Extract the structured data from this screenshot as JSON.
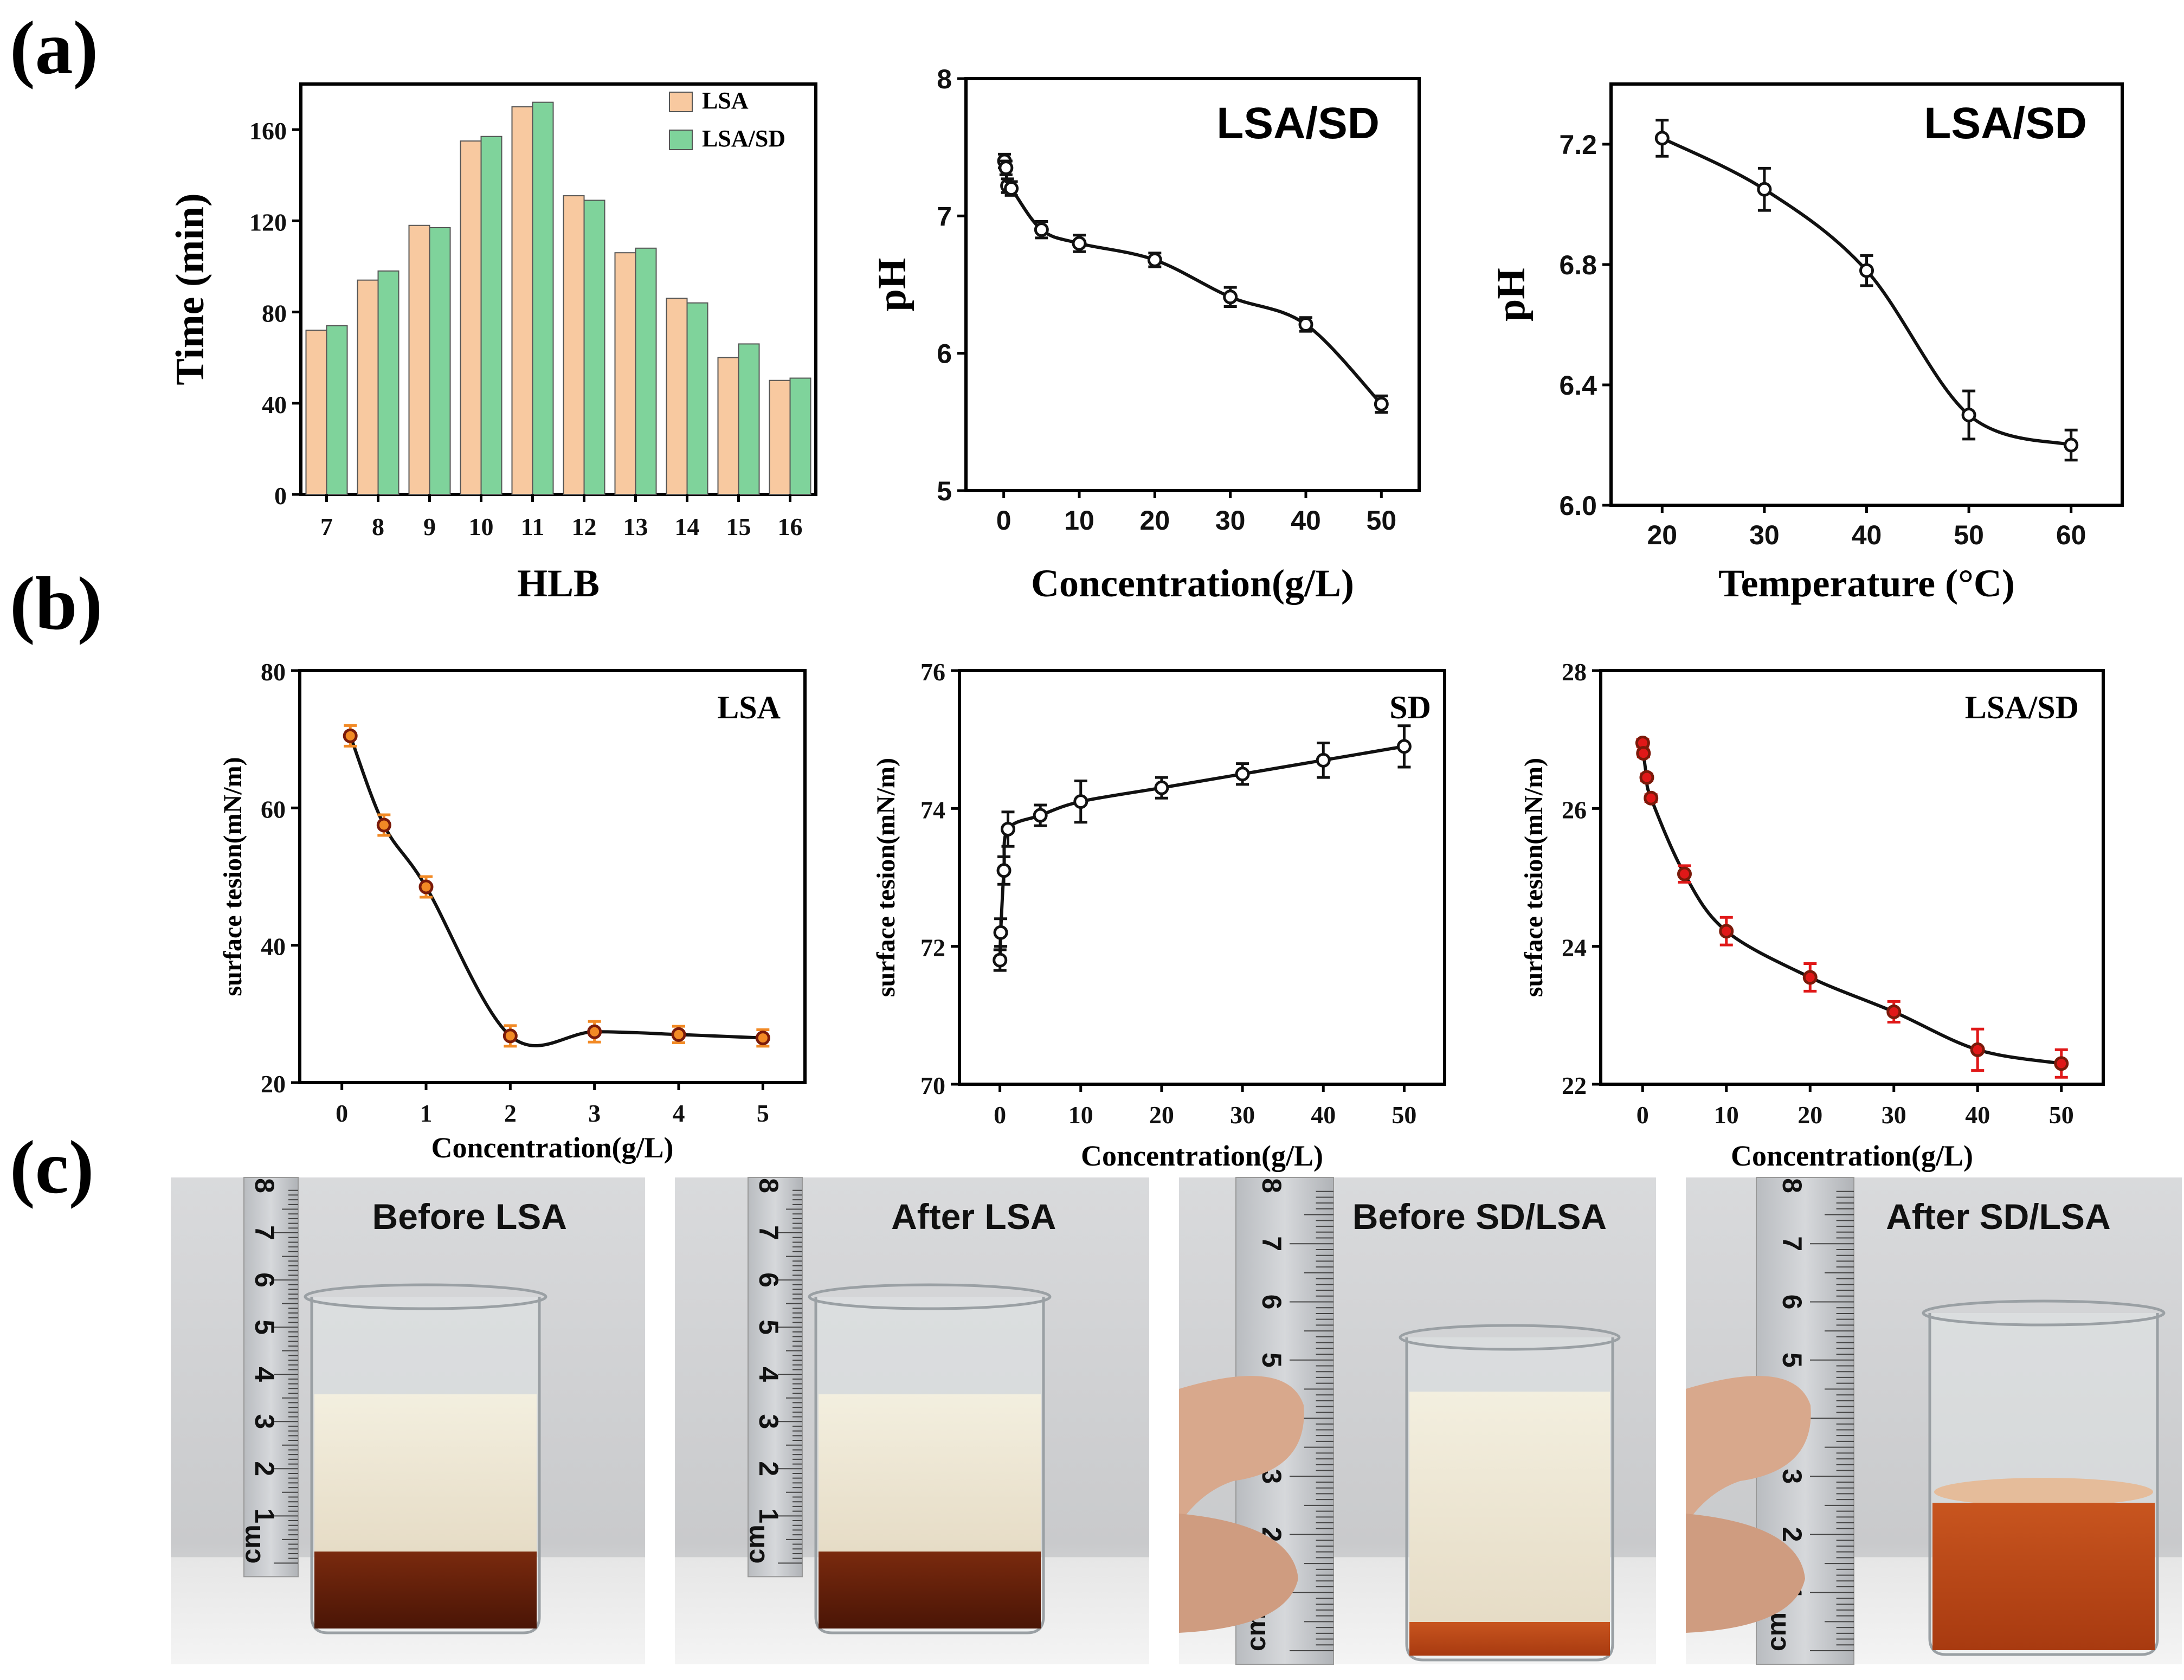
{
  "panel_labels": {
    "a": "(a)",
    "b": "(b)",
    "c": "(c)"
  },
  "colors": {
    "lsa_bar": "#f8c9a0",
    "lsasd_bar": "#7fd39b",
    "line_black": "#111111",
    "lsa_orange": "#f28a25",
    "lsasd_red": "#e01818"
  },
  "chart_data": [
    {
      "id": "a1",
      "type": "bar",
      "title": "",
      "xlabel": "HLB",
      "ylabel": "Time (min)",
      "categories": [
        "7",
        "8",
        "9",
        "10",
        "11",
        "12",
        "13",
        "14",
        "15",
        "16"
      ],
      "series": [
        {
          "name": "LSA",
          "values": [
            72,
            94,
            118,
            155,
            170,
            131,
            106,
            86,
            60,
            50
          ]
        },
        {
          "name": "LSA/SD",
          "values": [
            74,
            98,
            117,
            157,
            172,
            129,
            108,
            84,
            66,
            51
          ]
        }
      ],
      "ylim": [
        0,
        180
      ],
      "yticks": [
        "0",
        "40",
        "80",
        "120",
        "160"
      ],
      "legend": "top-right"
    },
    {
      "id": "a2",
      "type": "line",
      "title": "LSA/SD",
      "xlabel": "Concentration(g/L)",
      "ylabel": "pH",
      "x": [
        0.1,
        0.3,
        0.5,
        1,
        5,
        10,
        20,
        30,
        40,
        50
      ],
      "y": [
        7.4,
        7.35,
        7.22,
        7.2,
        6.9,
        6.8,
        6.68,
        6.41,
        6.21,
        5.63
      ],
      "err": [
        0.05,
        0.05,
        0.05,
        0.05,
        0.06,
        0.06,
        0.05,
        0.07,
        0.05,
        0.06
      ],
      "xlim": [
        -5,
        55
      ],
      "ylim": [
        5,
        8
      ],
      "xticks": [
        "0",
        "10",
        "20",
        "30",
        "40",
        "50"
      ],
      "yticks": [
        "5",
        "6",
        "7",
        "8"
      ]
    },
    {
      "id": "a3",
      "type": "line",
      "title": "LSA/SD",
      "xlabel": "Temperature (°C)",
      "ylabel": "pH",
      "x": [
        20,
        30,
        40,
        50,
        60
      ],
      "y": [
        7.22,
        7.05,
        6.78,
        6.3,
        6.2
      ],
      "err": [
        0.06,
        0.07,
        0.05,
        0.08,
        0.05
      ],
      "xlim": [
        15,
        65
      ],
      "ylim": [
        6.0,
        7.4
      ],
      "xticks": [
        "20",
        "30",
        "40",
        "50",
        "60"
      ],
      "yticks": [
        "6.0",
        "6.4",
        "6.8",
        "7.2"
      ]
    },
    {
      "id": "b1",
      "type": "line",
      "title": "LSA",
      "xlabel": "Concentration(g/L)",
      "ylabel": "surface tesion(mN/m)",
      "x": [
        0.1,
        0.5,
        1,
        2,
        3,
        4,
        5
      ],
      "y": [
        70.5,
        57.5,
        48.5,
        26.8,
        27.4,
        27.0,
        26.5
      ],
      "err": [
        1.5,
        1.5,
        1.5,
        1.5,
        1.5,
        1.2,
        1.2
      ],
      "xlim": [
        -0.5,
        5.5
      ],
      "ylim": [
        20,
        80
      ],
      "xticks": [
        "0",
        "1",
        "2",
        "3",
        "4",
        "5"
      ],
      "yticks": [
        "20",
        "40",
        "60",
        "80"
      ]
    },
    {
      "id": "b2",
      "type": "line",
      "title": "SD",
      "xlabel": "Concentration(g/L)",
      "ylabel": "surface tesion(mN/m)",
      "x": [
        0.01,
        0.1,
        0.5,
        1,
        5,
        10,
        20,
        30,
        40,
        50
      ],
      "y": [
        71.8,
        72.2,
        73.1,
        73.7,
        73.9,
        74.1,
        74.3,
        74.5,
        74.7,
        74.9
      ],
      "err": [
        0.15,
        0.2,
        0.2,
        0.25,
        0.15,
        0.3,
        0.15,
        0.15,
        0.25,
        0.3
      ],
      "xlim": [
        -5,
        55
      ],
      "ylim": [
        70,
        76
      ],
      "xticks": [
        "0",
        "10",
        "20",
        "30",
        "40",
        "50"
      ],
      "yticks": [
        "70",
        "72",
        "74",
        "76"
      ]
    },
    {
      "id": "b3",
      "type": "line",
      "title": "LSA/SD",
      "xlabel": "Concentration(g/L)",
      "ylabel": "surface tesion(mN/m)",
      "x": [
        0.01,
        0.1,
        0.5,
        1,
        5,
        10,
        20,
        30,
        40,
        50
      ],
      "y": [
        26.95,
        26.8,
        26.45,
        26.15,
        25.05,
        24.22,
        23.55,
        23.05,
        22.5,
        22.3
      ],
      "err": [
        0.05,
        0.05,
        0.05,
        0.05,
        0.12,
        0.2,
        0.2,
        0.15,
        0.3,
        0.2
      ],
      "xlim": [
        -5,
        55
      ],
      "ylim": [
        22,
        28
      ],
      "xticks": [
        "0",
        "10",
        "20",
        "30",
        "40",
        "50"
      ],
      "yticks": [
        "22",
        "24",
        "26",
        "28"
      ]
    }
  ],
  "photos": [
    {
      "caption": "Before LSA"
    },
    {
      "caption": "After LSA"
    },
    {
      "caption": "Before SD/LSA"
    },
    {
      "caption": "After SD/LSA"
    }
  ],
  "ruler_numbers": [
    "1",
    "2",
    "3",
    "4",
    "5",
    "6",
    "7",
    "8"
  ],
  "ruler_unit": "cm"
}
